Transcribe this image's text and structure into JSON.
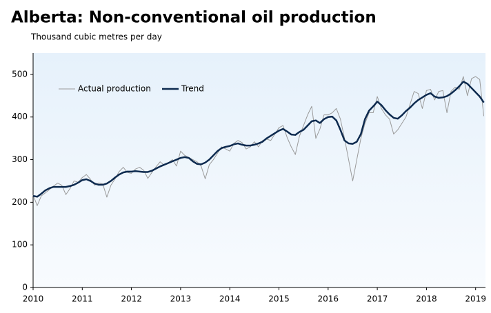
{
  "chart_data": {
    "type": "line",
    "title": "Alberta: Non-conventional oil production",
    "subtitle": "Thousand cubic metres per day",
    "categories": [
      "2010",
      null,
      null,
      null,
      null,
      null,
      null,
      null,
      null,
      null,
      null,
      null,
      "2011",
      null,
      null,
      null,
      null,
      null,
      null,
      null,
      null,
      null,
      null,
      null,
      "2012",
      null,
      null,
      null,
      null,
      null,
      null,
      null,
      null,
      null,
      null,
      null,
      "2013",
      null,
      null,
      null,
      null,
      null,
      null,
      null,
      null,
      null,
      null,
      null,
      "2014",
      null,
      null,
      null,
      null,
      null,
      null,
      null,
      null,
      null,
      null,
      null,
      "2015",
      null,
      null,
      null,
      null,
      null,
      null,
      null,
      null,
      null,
      null,
      null,
      "2016",
      null,
      null,
      null,
      null,
      null,
      null,
      null,
      null,
      null,
      null,
      null,
      "2017",
      null,
      null,
      null,
      null,
      null,
      null,
      null,
      null,
      null,
      null,
      null,
      "2018",
      null,
      null,
      null,
      null,
      null,
      null,
      null,
      null,
      null,
      null,
      null,
      "2019",
      null,
      null
    ],
    "series": [
      {
        "name": "Actual production",
        "color": "#9a9a9a",
        "width": 1,
        "values": [
          217,
          192,
          215,
          222,
          230,
          238,
          245,
          240,
          218,
          232,
          250,
          247,
          258,
          265,
          254,
          240,
          245,
          243,
          212,
          240,
          255,
          272,
          282,
          270,
          268,
          278,
          282,
          275,
          256,
          270,
          283,
          295,
          287,
          293,
          300,
          285,
          320,
          310,
          305,
          300,
          295,
          285,
          255,
          288,
          300,
          315,
          330,
          325,
          320,
          338,
          345,
          340,
          325,
          330,
          342,
          330,
          345,
          348,
          345,
          360,
          375,
          380,
          352,
          330,
          312,
          355,
          380,
          405,
          425,
          350,
          372,
          405,
          405,
          410,
          420,
          395,
          350,
          300,
          250,
          300,
          350,
          385,
          410,
          410,
          448,
          420,
          405,
          395,
          360,
          370,
          385,
          400,
          430,
          460,
          455,
          420,
          462,
          465,
          440,
          460,
          462,
          410,
          460,
          470,
          465,
          495,
          450,
          490,
          495,
          488,
          402
        ]
      },
      {
        "name": "Trend",
        "color": "#0d2a4f",
        "width": 2.5,
        "values": [
          215,
          213,
          220,
          228,
          233,
          236,
          236,
          236,
          236,
          238,
          241,
          246,
          252,
          254,
          250,
          244,
          241,
          241,
          244,
          250,
          258,
          265,
          270,
          272,
          272,
          273,
          272,
          271,
          271,
          274,
          279,
          284,
          288,
          292,
          296,
          300,
          304,
          306,
          304,
          296,
          290,
          289,
          293,
          300,
          310,
          320,
          327,
          330,
          332,
          336,
          338,
          335,
          333,
          333,
          335,
          338,
          342,
          350,
          356,
          362,
          368,
          372,
          366,
          359,
          358,
          365,
          370,
          380,
          390,
          392,
          386,
          395,
          400,
          401,
          392,
          370,
          345,
          338,
          337,
          342,
          360,
          395,
          415,
          425,
          436,
          428,
          416,
          406,
          398,
          396,
          404,
          414,
          422,
          432,
          440,
          446,
          452,
          456,
          448,
          445,
          446,
          449,
          455,
          463,
          472,
          483,
          478,
          468,
          458,
          448,
          434
        ]
      }
    ],
    "ylim": [
      0,
      550
    ],
    "yticks": [
      0,
      100,
      200,
      300,
      400,
      500
    ],
    "legend": "top-left",
    "grid": false
  }
}
